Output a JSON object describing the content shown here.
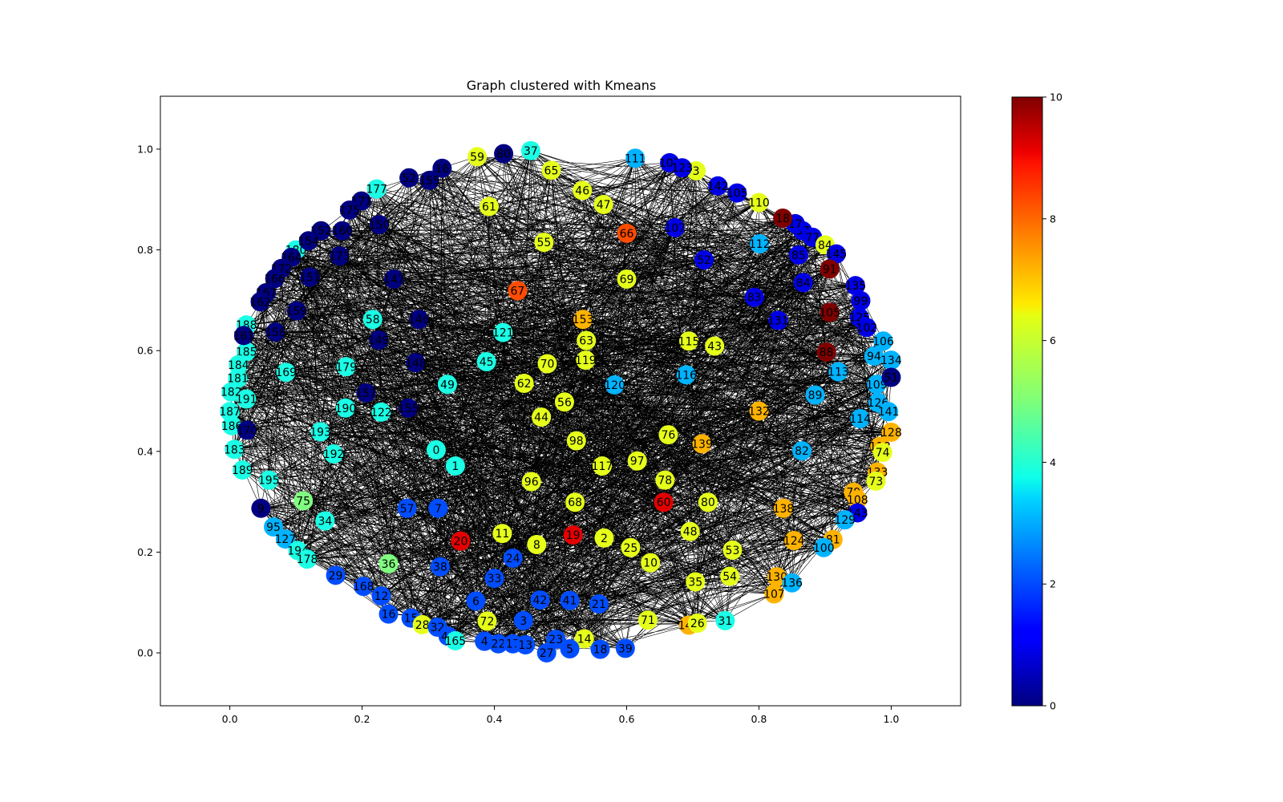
{
  "figure": {
    "background": "#ffffff"
  },
  "chart_data": {
    "type": "scatter",
    "title": "Graph clustered with Kmeans",
    "xlabel": "",
    "ylabel": "",
    "xlim": [
      -0.105,
      1.105
    ],
    "ylim": [
      -0.105,
      1.105
    ],
    "xticks": [
      0.0,
      0.2,
      0.4,
      0.6,
      0.8,
      1.0
    ],
    "xtick_labels": [
      "0.0",
      "0.2",
      "0.4",
      "0.6",
      "0.8",
      "1.0"
    ],
    "yticks": [
      0.0,
      0.2,
      0.4,
      0.6,
      0.8,
      1.0
    ],
    "ytick_labels": [
      "0.0",
      "0.2",
      "0.4",
      "0.6",
      "0.8",
      "1.0"
    ],
    "grid": false,
    "edge_color": "#000000",
    "colormap": "jet",
    "colorbar": {
      "min": 0,
      "max": 10,
      "ticks": [
        0,
        2,
        4,
        6,
        8,
        10
      ],
      "tick_labels": [
        "0",
        "2",
        "4",
        "6",
        "8",
        "10"
      ]
    },
    "nodes": [
      {
        "label": "37",
        "x": 0.455,
        "y": 0.997,
        "c": 4
      },
      {
        "label": "59",
        "x": 0.374,
        "y": 0.985,
        "c": 6
      },
      {
        "label": "65",
        "x": 0.486,
        "y": 0.958,
        "c": 6
      },
      {
        "label": "16",
        "x": 0.321,
        "y": 0.962,
        "c": 0
      },
      {
        "label": "52",
        "x": 0.271,
        "y": 0.943,
        "c": 0
      },
      {
        "label": "177",
        "x": 0.222,
        "y": 0.921,
        "c": 4
      },
      {
        "label": "111",
        "x": 0.613,
        "y": 0.982,
        "c": 3
      },
      {
        "label": "103",
        "x": 0.665,
        "y": 0.973,
        "c": 1
      },
      {
        "label": "3",
        "x": 0.705,
        "y": 0.957,
        "c": 6
      },
      {
        "label": "142",
        "x": 0.738,
        "y": 0.927,
        "c": 1
      },
      {
        "label": "110",
        "x": 0.8,
        "y": 0.894,
        "c": 6
      },
      {
        "label": "46",
        "x": 0.533,
        "y": 0.918,
        "c": 6
      },
      {
        "label": "47",
        "x": 0.565,
        "y": 0.89,
        "c": 6
      },
      {
        "label": "61",
        "x": 0.392,
        "y": 0.886,
        "c": 6
      },
      {
        "label": "150",
        "x": 0.226,
        "y": 0.85,
        "c": 0
      },
      {
        "label": "160",
        "x": 0.17,
        "y": 0.838,
        "c": 0
      },
      {
        "label": "66",
        "x": 0.6,
        "y": 0.833,
        "c": 8
      },
      {
        "label": "107",
        "x": 0.673,
        "y": 0.844,
        "c": 1
      },
      {
        "label": "55",
        "x": 0.475,
        "y": 0.815,
        "c": 6
      },
      {
        "label": "112",
        "x": 0.801,
        "y": 0.812,
        "c": 3
      },
      {
        "label": "180",
        "x": 0.1,
        "y": 0.8,
        "c": 4
      },
      {
        "label": "173",
        "x": 0.166,
        "y": 0.788,
        "c": 0
      },
      {
        "label": "52",
        "x": 0.717,
        "y": 0.78,
        "c": 1
      },
      {
        "label": "85",
        "x": 0.86,
        "y": 0.79,
        "c": 1
      },
      {
        "label": "151",
        "x": 0.121,
        "y": 0.746,
        "c": 0
      },
      {
        "label": "147",
        "x": 0.248,
        "y": 0.742,
        "c": 0
      },
      {
        "label": "69",
        "x": 0.6,
        "y": 0.742,
        "c": 6
      },
      {
        "label": "84",
        "x": 0.867,
        "y": 0.735,
        "c": 1
      },
      {
        "label": "67",
        "x": 0.435,
        "y": 0.719,
        "c": 8
      },
      {
        "label": "83",
        "x": 0.793,
        "y": 0.706,
        "c": 1
      },
      {
        "label": "159",
        "x": 0.101,
        "y": 0.679,
        "c": 0
      },
      {
        "label": "58",
        "x": 0.216,
        "y": 0.662,
        "c": 4
      },
      {
        "label": "146",
        "x": 0.286,
        "y": 0.662,
        "c": 0
      },
      {
        "label": "153",
        "x": 0.534,
        "y": 0.662,
        "c": 7
      },
      {
        "label": "131",
        "x": 0.829,
        "y": 0.66,
        "c": 1
      },
      {
        "label": "105",
        "x": 0.907,
        "y": 0.676,
        "c": 10
      },
      {
        "label": "188",
        "x": 0.025,
        "y": 0.651,
        "c": 4
      },
      {
        "label": "158",
        "x": 0.069,
        "y": 0.637,
        "c": 0
      },
      {
        "label": "149",
        "x": 0.225,
        "y": 0.621,
        "c": 0
      },
      {
        "label": "121",
        "x": 0.413,
        "y": 0.636,
        "c": 4
      },
      {
        "label": "63",
        "x": 0.539,
        "y": 0.62,
        "c": 6
      },
      {
        "label": "115",
        "x": 0.694,
        "y": 0.619,
        "c": 6
      },
      {
        "label": "43",
        "x": 0.733,
        "y": 0.609,
        "c": 6
      },
      {
        "label": "106",
        "x": 0.988,
        "y": 0.619,
        "c": 3
      },
      {
        "label": "185",
        "x": 0.025,
        "y": 0.598,
        "c": 4
      },
      {
        "label": "88",
        "x": 0.902,
        "y": 0.597,
        "c": 10
      },
      {
        "label": "184",
        "x": 0.013,
        "y": 0.572,
        "c": 4
      },
      {
        "label": "169",
        "x": 0.085,
        "y": 0.557,
        "c": 4
      },
      {
        "label": "179",
        "x": 0.176,
        "y": 0.568,
        "c": 4
      },
      {
        "label": "148",
        "x": 0.281,
        "y": 0.576,
        "c": 0
      },
      {
        "label": "45",
        "x": 0.388,
        "y": 0.578,
        "c": 4
      },
      {
        "label": "119",
        "x": 0.538,
        "y": 0.581,
        "c": 6
      },
      {
        "label": "70",
        "x": 0.48,
        "y": 0.574,
        "c": 6
      },
      {
        "label": "116",
        "x": 0.69,
        "y": 0.552,
        "c": 3
      },
      {
        "label": "113",
        "x": 0.92,
        "y": 0.558,
        "c": 3
      },
      {
        "label": "94",
        "x": 0.974,
        "y": 0.589,
        "c": 3
      },
      {
        "label": "134",
        "x": 1.0,
        "y": 0.581,
        "c": 3
      },
      {
        "label": "181",
        "x": 0.012,
        "y": 0.545,
        "c": 4
      },
      {
        "label": "49",
        "x": 0.329,
        "y": 0.533,
        "c": 4
      },
      {
        "label": "62",
        "x": 0.445,
        "y": 0.535,
        "c": 6
      },
      {
        "label": "120",
        "x": 0.582,
        "y": 0.532,
        "c": 3
      },
      {
        "label": "109",
        "x": 0.978,
        "y": 0.533,
        "c": 3
      },
      {
        "label": "182",
        "x": 0.002,
        "y": 0.518,
        "c": 4
      },
      {
        "label": "191",
        "x": 0.025,
        "y": 0.504,
        "c": 4
      },
      {
        "label": "157",
        "x": 0.206,
        "y": 0.516,
        "c": 0
      },
      {
        "label": "89",
        "x": 0.885,
        "y": 0.512,
        "c": 3
      },
      {
        "label": "56",
        "x": 0.506,
        "y": 0.498,
        "c": 6
      },
      {
        "label": "126",
        "x": 0.98,
        "y": 0.497,
        "c": 3
      },
      {
        "label": "190",
        "x": 0.175,
        "y": 0.486,
        "c": 4
      },
      {
        "label": "122",
        "x": 0.229,
        "y": 0.478,
        "c": 4
      },
      {
        "label": "155",
        "x": 0.27,
        "y": 0.486,
        "c": 0
      },
      {
        "label": "132",
        "x": 0.8,
        "y": 0.48,
        "c": 7
      },
      {
        "label": "141",
        "x": 0.996,
        "y": 0.479,
        "c": 3
      },
      {
        "label": "187",
        "x": 0.0,
        "y": 0.479,
        "c": 4
      },
      {
        "label": "44",
        "x": 0.471,
        "y": 0.468,
        "c": 6
      },
      {
        "label": "114",
        "x": 0.953,
        "y": 0.465,
        "c": 3
      },
      {
        "label": "186",
        "x": 0.003,
        "y": 0.451,
        "c": 4
      },
      {
        "label": "193",
        "x": 0.137,
        "y": 0.439,
        "c": 4
      },
      {
        "label": "76",
        "x": 0.663,
        "y": 0.433,
        "c": 6
      },
      {
        "label": "128",
        "x": 1.0,
        "y": 0.438,
        "c": 7
      },
      {
        "label": "98",
        "x": 0.524,
        "y": 0.421,
        "c": 6
      },
      {
        "label": "139",
        "x": 0.714,
        "y": 0.415,
        "c": 7
      },
      {
        "label": "118",
        "x": 0.983,
        "y": 0.41,
        "c": 7
      },
      {
        "label": "183",
        "x": 0.007,
        "y": 0.404,
        "c": 4
      },
      {
        "label": "0",
        "x": 0.312,
        "y": 0.403,
        "c": 4
      },
      {
        "label": "82",
        "x": 0.865,
        "y": 0.401,
        "c": 3
      },
      {
        "label": "74",
        "x": 0.987,
        "y": 0.398,
        "c": 6
      },
      {
        "label": "192",
        "x": 0.157,
        "y": 0.395,
        "c": 4
      },
      {
        "label": "1",
        "x": 0.341,
        "y": 0.371,
        "c": 4
      },
      {
        "label": "117",
        "x": 0.563,
        "y": 0.371,
        "c": 6
      },
      {
        "label": "97",
        "x": 0.616,
        "y": 0.381,
        "c": 6
      },
      {
        "label": "189",
        "x": 0.019,
        "y": 0.363,
        "c": 4
      },
      {
        "label": "133",
        "x": 0.979,
        "y": 0.359,
        "c": 7
      },
      {
        "label": "195",
        "x": 0.059,
        "y": 0.343,
        "c": 4
      },
      {
        "label": "96",
        "x": 0.456,
        "y": 0.34,
        "c": 6
      },
      {
        "label": "78",
        "x": 0.658,
        "y": 0.343,
        "c": 6
      },
      {
        "label": "73",
        "x": 0.977,
        "y": 0.341,
        "c": 6
      },
      {
        "label": "79",
        "x": 0.943,
        "y": 0.319,
        "c": 7
      },
      {
        "label": "75",
        "x": 0.111,
        "y": 0.302,
        "c": 5
      },
      {
        "label": "68",
        "x": 0.522,
        "y": 0.299,
        "c": 6
      },
      {
        "label": "60",
        "x": 0.656,
        "y": 0.299,
        "c": 9
      },
      {
        "label": "80",
        "x": 0.723,
        "y": 0.299,
        "c": 6
      },
      {
        "label": "108",
        "x": 0.949,
        "y": 0.304,
        "c": 7
      },
      {
        "label": "9",
        "x": 0.047,
        "y": 0.287,
        "c": 0
      },
      {
        "label": "57",
        "x": 0.268,
        "y": 0.287,
        "c": 2
      },
      {
        "label": "7",
        "x": 0.315,
        "y": 0.287,
        "c": 2
      },
      {
        "label": "138",
        "x": 0.837,
        "y": 0.287,
        "c": 7
      },
      {
        "label": "143",
        "x": 0.949,
        "y": 0.278,
        "c": 1
      },
      {
        "label": "34",
        "x": 0.144,
        "y": 0.262,
        "c": 4
      },
      {
        "label": "129",
        "x": 0.93,
        "y": 0.264,
        "c": 3
      },
      {
        "label": "95",
        "x": 0.066,
        "y": 0.25,
        "c": 3
      },
      {
        "label": "11",
        "x": 0.412,
        "y": 0.237,
        "c": 6
      },
      {
        "label": "48",
        "x": 0.696,
        "y": 0.241,
        "c": 6
      },
      {
        "label": "19",
        "x": 0.519,
        "y": 0.234,
        "c": 9
      },
      {
        "label": "2",
        "x": 0.566,
        "y": 0.228,
        "c": 6
      },
      {
        "label": "127",
        "x": 0.084,
        "y": 0.226,
        "c": 3
      },
      {
        "label": "20",
        "x": 0.349,
        "y": 0.222,
        "c": 9
      },
      {
        "label": "124",
        "x": 0.853,
        "y": 0.223,
        "c": 7
      },
      {
        "label": "81",
        "x": 0.912,
        "y": 0.225,
        "c": 7
      },
      {
        "label": "8",
        "x": 0.464,
        "y": 0.215,
        "c": 6
      },
      {
        "label": "25",
        "x": 0.606,
        "y": 0.209,
        "c": 6
      },
      {
        "label": "53",
        "x": 0.76,
        "y": 0.204,
        "c": 6
      },
      {
        "label": "100",
        "x": 0.898,
        "y": 0.209,
        "c": 3
      },
      {
        "label": "194",
        "x": 0.103,
        "y": 0.203,
        "c": 4
      },
      {
        "label": "178",
        "x": 0.117,
        "y": 0.186,
        "c": 4
      },
      {
        "label": "24",
        "x": 0.428,
        "y": 0.188,
        "c": 2
      },
      {
        "label": "10",
        "x": 0.636,
        "y": 0.179,
        "c": 6
      },
      {
        "label": "36",
        "x": 0.24,
        "y": 0.177,
        "c": 5
      },
      {
        "label": "38",
        "x": 0.318,
        "y": 0.171,
        "c": 2
      },
      {
        "label": "29",
        "x": 0.16,
        "y": 0.154,
        "c": 2
      },
      {
        "label": "54",
        "x": 0.756,
        "y": 0.152,
        "c": 6
      },
      {
        "label": "130",
        "x": 0.827,
        "y": 0.151,
        "c": 7
      },
      {
        "label": "33",
        "x": 0.4,
        "y": 0.148,
        "c": 2
      },
      {
        "label": "35",
        "x": 0.704,
        "y": 0.141,
        "c": 6
      },
      {
        "label": "136",
        "x": 0.85,
        "y": 0.139,
        "c": 3
      },
      {
        "label": "168",
        "x": 0.202,
        "y": 0.132,
        "c": 2
      },
      {
        "label": "12",
        "x": 0.229,
        "y": 0.113,
        "c": 2
      },
      {
        "label": "107",
        "x": 0.823,
        "y": 0.117,
        "c": 7
      },
      {
        "label": "6",
        "x": 0.372,
        "y": 0.103,
        "c": 2
      },
      {
        "label": "42",
        "x": 0.469,
        "y": 0.105,
        "c": 2
      },
      {
        "label": "41",
        "x": 0.514,
        "y": 0.104,
        "c": 2
      },
      {
        "label": "21",
        "x": 0.558,
        "y": 0.097,
        "c": 2
      },
      {
        "label": "16",
        "x": 0.24,
        "y": 0.077,
        "c": 2
      },
      {
        "label": "15",
        "x": 0.274,
        "y": 0.069,
        "c": 2
      },
      {
        "label": "72",
        "x": 0.389,
        "y": 0.063,
        "c": 6
      },
      {
        "label": "3",
        "x": 0.444,
        "y": 0.064,
        "c": 2
      },
      {
        "label": "71",
        "x": 0.632,
        "y": 0.065,
        "c": 6
      },
      {
        "label": "31",
        "x": 0.749,
        "y": 0.064,
        "c": 4
      },
      {
        "label": "28",
        "x": 0.291,
        "y": 0.056,
        "c": 6
      },
      {
        "label": "32",
        "x": 0.314,
        "y": 0.051,
        "c": 2
      },
      {
        "label": "140",
        "x": 0.694,
        "y": 0.055,
        "c": 7
      },
      {
        "label": "26",
        "x": 0.707,
        "y": 0.059,
        "c": 6
      },
      {
        "label": "40",
        "x": 0.33,
        "y": 0.033,
        "c": 2
      },
      {
        "label": "165",
        "x": 0.341,
        "y": 0.024,
        "c": 4
      },
      {
        "label": "23",
        "x": 0.493,
        "y": 0.027,
        "c": 2
      },
      {
        "label": "14",
        "x": 0.536,
        "y": 0.028,
        "c": 6
      },
      {
        "label": "4",
        "x": 0.385,
        "y": 0.023,
        "c": 2
      },
      {
        "label": "22",
        "x": 0.406,
        "y": 0.018,
        "c": 2
      },
      {
        "label": "17",
        "x": 0.428,
        "y": 0.018,
        "c": 2
      },
      {
        "label": "13",
        "x": 0.447,
        "y": 0.016,
        "c": 2
      },
      {
        "label": "5",
        "x": 0.514,
        "y": 0.008,
        "c": 2
      },
      {
        "label": "18",
        "x": 0.56,
        "y": 0.007,
        "c": 2
      },
      {
        "label": "39",
        "x": 0.598,
        "y": 0.009,
        "c": 2
      },
      {
        "label": "27",
        "x": 0.479,
        "y": 0.0,
        "c": 2
      },
      {
        "label": "87",
        "x": 0.866,
        "y": 0.838,
        "c": 1
      },
      {
        "label": "17",
        "x": 0.855,
        "y": 0.852,
        "c": 1
      },
      {
        "label": "77",
        "x": 0.881,
        "y": 0.825,
        "c": 1
      },
      {
        "label": "84",
        "x": 0.9,
        "y": 0.81,
        "c": 6
      },
      {
        "label": "145",
        "x": 0.917,
        "y": 0.792,
        "c": 1
      },
      {
        "label": "91",
        "x": 0.907,
        "y": 0.762,
        "c": 10
      },
      {
        "label": "135",
        "x": 0.946,
        "y": 0.729,
        "c": 1
      },
      {
        "label": "99",
        "x": 0.954,
        "y": 0.699,
        "c": 1
      },
      {
        "label": "125",
        "x": 0.952,
        "y": 0.666,
        "c": 1
      },
      {
        "label": "102",
        "x": 0.963,
        "y": 0.646,
        "c": 1
      },
      {
        "label": "18",
        "x": 0.836,
        "y": 0.863,
        "c": 10
      },
      {
        "label": "105",
        "x": 0.767,
        "y": 0.913,
        "c": 1
      },
      {
        "label": "123",
        "x": 0.684,
        "y": 0.963,
        "c": 1
      },
      {
        "label": "80",
        "x": 0.414,
        "y": 0.991,
        "c": 0
      },
      {
        "label": "155",
        "x": 0.302,
        "y": 0.938,
        "c": 0
      },
      {
        "label": "171",
        "x": 0.199,
        "y": 0.897,
        "c": 0
      },
      {
        "label": "175",
        "x": 0.181,
        "y": 0.879,
        "c": 0
      },
      {
        "label": "152",
        "x": 0.138,
        "y": 0.838,
        "c": 0
      },
      {
        "label": "154",
        "x": 0.119,
        "y": 0.818,
        "c": 0
      },
      {
        "label": "164",
        "x": 0.093,
        "y": 0.785,
        "c": 0
      },
      {
        "label": "172",
        "x": 0.078,
        "y": 0.763,
        "c": 0
      },
      {
        "label": "166",
        "x": 0.068,
        "y": 0.743,
        "c": 0
      },
      {
        "label": "167",
        "x": 0.055,
        "y": 0.715,
        "c": 0
      },
      {
        "label": "162",
        "x": 0.046,
        "y": 0.697,
        "c": 0
      },
      {
        "label": "161",
        "x": 0.021,
        "y": 0.63,
        "c": 0
      },
      {
        "label": "170",
        "x": 0.026,
        "y": 0.442,
        "c": 0
      },
      {
        "label": "51",
        "x": 1.0,
        "y": 0.547,
        "c": 0
      }
    ]
  }
}
